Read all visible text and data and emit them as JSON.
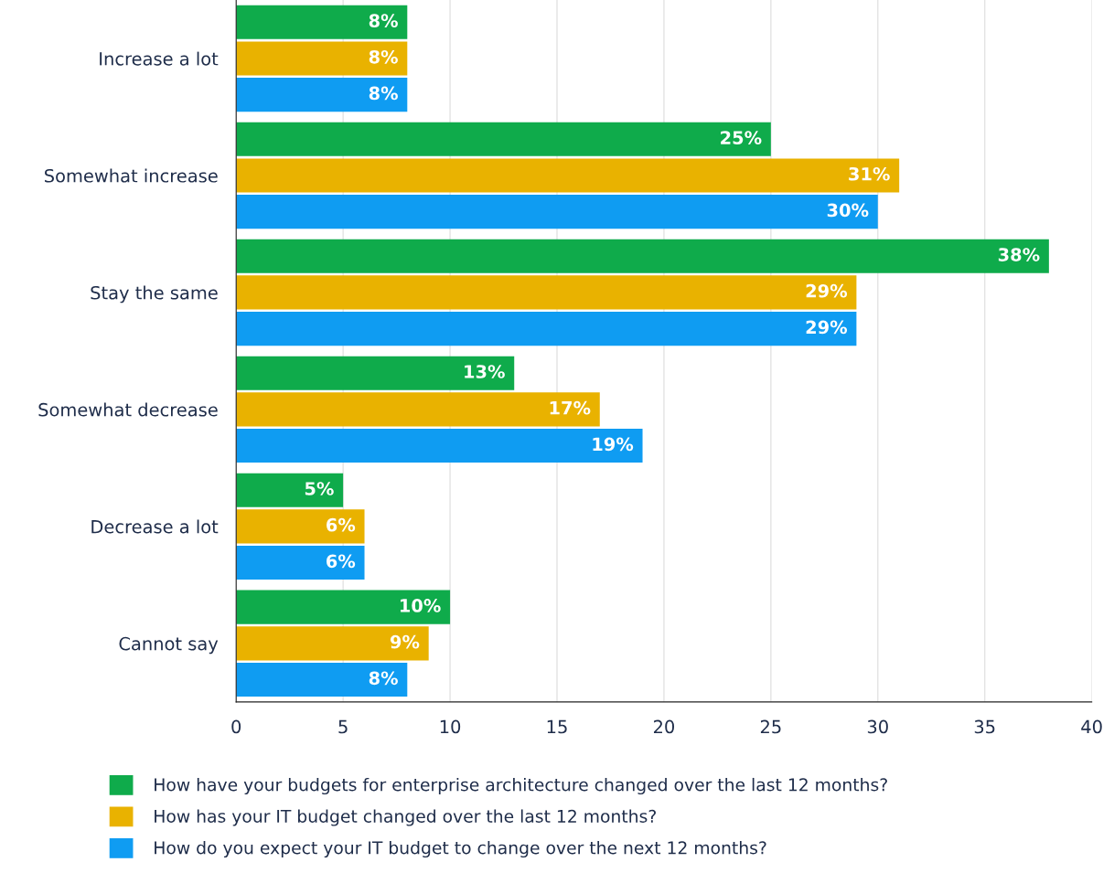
{
  "chart_data": {
    "type": "bar",
    "orientation": "horizontal",
    "categories": [
      "Increase a lot",
      "Somewhat increase",
      "Stay the same",
      "Somewhat decrease",
      "Decrease a lot",
      "Cannot say"
    ],
    "series": [
      {
        "name": "How have your budgets for enterprise architecture changed over the last 12 months?",
        "color": "#0fab4b",
        "values": [
          8,
          25,
          38,
          13,
          5,
          10
        ],
        "value_labels": [
          "8%",
          "25%",
          "38%",
          "13%",
          "5%",
          "10%"
        ]
      },
      {
        "name": "How has your IT budget changed over the last 12 months?",
        "color": "#e9b200",
        "values": [
          8,
          31,
          29,
          17,
          6,
          9
        ],
        "value_labels": [
          "8%",
          "31%",
          "29%",
          "17%",
          "6%",
          "9%"
        ]
      },
      {
        "name": "How do you expect your IT budget to change over the next 12 months?",
        "color": "#0f9cf2",
        "values": [
          8,
          30,
          29,
          19,
          6,
          8
        ],
        "value_labels": [
          "8%",
          "30%",
          "29%",
          "19%",
          "6%",
          "8%"
        ]
      }
    ],
    "xlim": [
      0,
      40
    ],
    "xticks": [
      0,
      5,
      10,
      15,
      20,
      25,
      30,
      35,
      40
    ],
    "grid": "x",
    "legend": "bottom"
  }
}
